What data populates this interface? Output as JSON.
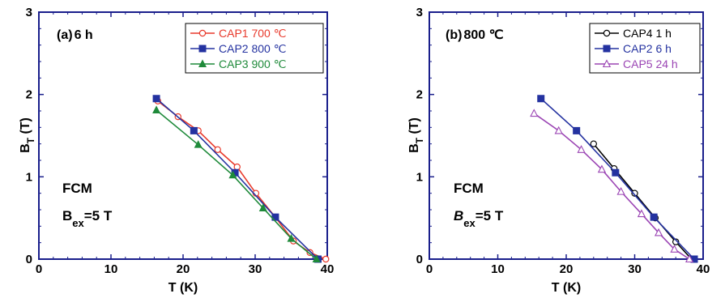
{
  "colors": {
    "axis": "#1a1f8c",
    "red": "#e8392b",
    "blue": "#2432a0",
    "green": "#1f8a3a",
    "black": "#000000",
    "purple": "#9b45b4"
  },
  "chart_data": [
    {
      "type": "line",
      "panel_label": "(a)",
      "condition": "6 h",
      "xlabel": "T (K)",
      "ylabel": {
        "main": "B",
        "sub": "T",
        "unit": " (T)"
      },
      "xlim": [
        0,
        40
      ],
      "ylim": [
        0,
        3
      ],
      "xticks": [
        0,
        10,
        20,
        30,
        40
      ],
      "yticks": [
        0,
        1,
        2,
        3
      ],
      "legend_position": "top-right",
      "annotation": {
        "line1": "FCM",
        "bex_main": "B",
        "bex_sub": "ex",
        "bex_value": "=5 T"
      },
      "series": [
        {
          "name": "CAP1  700  ℃",
          "color": "#e8392b",
          "marker": "circle-open",
          "x": [
            16.5,
            19.3,
            22.1,
            24.8,
            27.5,
            30.1,
            32.8,
            35.3,
            37.6,
            39.8
          ],
          "y": [
            1.92,
            1.73,
            1.56,
            1.33,
            1.12,
            0.8,
            0.51,
            0.22,
            0.08,
            0.0
          ]
        },
        {
          "name": "CAP2  800  ℃",
          "color": "#2432a0",
          "marker": "square-filled",
          "x": [
            16.3,
            21.5,
            27.2,
            32.8,
            38.7
          ],
          "y": [
            1.95,
            1.56,
            1.05,
            0.51,
            0.0
          ]
        },
        {
          "name": "CAP3  900  ℃",
          "color": "#1f8a3a",
          "marker": "triangle-filled",
          "x": [
            16.3,
            22.1,
            26.9,
            31.1,
            35.0,
            38.5
          ],
          "y": [
            1.81,
            1.39,
            1.02,
            0.62,
            0.25,
            0.0
          ]
        }
      ]
    },
    {
      "type": "line",
      "panel_label": "(b)",
      "condition": "800 ℃",
      "xlabel": "T (K)",
      "ylabel": {
        "main": "B",
        "sub": "T",
        "unit": " (T)"
      },
      "xlim": [
        0,
        40
      ],
      "ylim": [
        0,
        3
      ],
      "xticks": [
        0,
        10,
        20,
        30,
        40
      ],
      "yticks": [
        0,
        1,
        2,
        3
      ],
      "legend_position": "top-right",
      "annotation": {
        "line1": "FCM",
        "bex_main": "B",
        "bex_sub": "ex",
        "bex_value": "=5 T"
      },
      "series": [
        {
          "name": "CAP4  1  h",
          "color": "#000000",
          "marker": "circle-open",
          "x": [
            24.0,
            27.0,
            30.0,
            33.0,
            36.0,
            38.3
          ],
          "y": [
            1.4,
            1.1,
            0.8,
            0.5,
            0.21,
            0.0
          ]
        },
        {
          "name": "CAP2  6  h",
          "color": "#2432a0",
          "marker": "square-filled",
          "x": [
            16.3,
            21.5,
            27.2,
            32.8,
            38.7
          ],
          "y": [
            1.95,
            1.56,
            1.05,
            0.51,
            0.0
          ]
        },
        {
          "name": "CAP5  24  h",
          "color": "#9b45b4",
          "marker": "triangle-open",
          "x": [
            15.3,
            18.9,
            22.2,
            25.2,
            28.0,
            31.0,
            33.5,
            35.8,
            38.0
          ],
          "y": [
            1.77,
            1.56,
            1.33,
            1.09,
            0.82,
            0.55,
            0.32,
            0.12,
            0.0
          ]
        }
      ]
    }
  ]
}
